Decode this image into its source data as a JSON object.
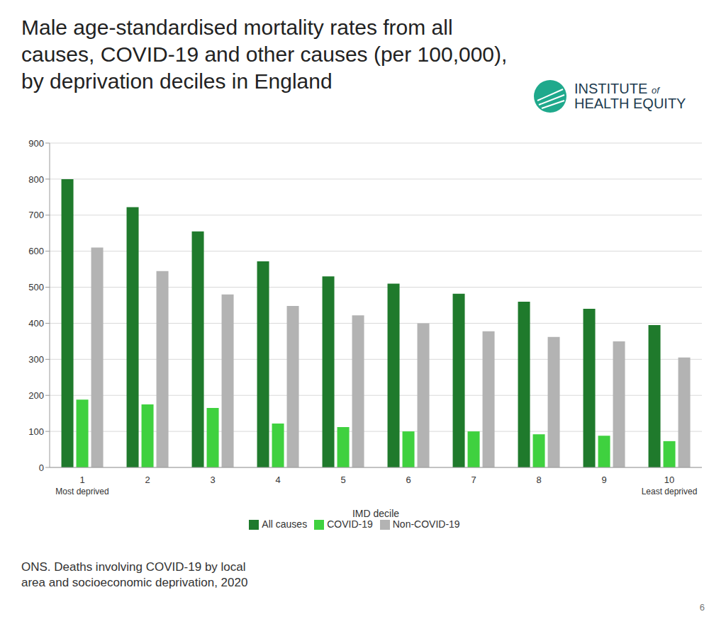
{
  "chart_data": {
    "type": "bar",
    "title": "Male age-standardised mortality rates from all causes, COVID-19 and other causes (per 100,000), by deprivation deciles in England",
    "logo": [
      "INSTITUTE",
      "of",
      "HEALTH EQUITY"
    ],
    "x_label": "IMD decile",
    "categories": [
      "1",
      "2",
      "3",
      "4",
      "5",
      "6",
      "7",
      "8",
      "9",
      "10"
    ],
    "x_sublabels": [
      "Most deprived",
      null,
      null,
      null,
      null,
      null,
      null,
      null,
      null,
      "Least deprived"
    ],
    "series": [
      {
        "name": "All causes",
        "color": "#1f7a2c",
        "values": [
          800,
          722,
          655,
          572,
          530,
          510,
          482,
          460,
          440,
          395
        ]
      },
      {
        "name": "COVID-19",
        "color": "#3fd13f",
        "values": [
          188,
          175,
          165,
          122,
          112,
          100,
          100,
          92,
          88,
          73
        ]
      },
      {
        "name": "Non-COVID-19",
        "color": "#b3b3b3",
        "values": [
          610,
          545,
          480,
          448,
          422,
          400,
          378,
          362,
          350,
          305
        ]
      }
    ],
    "ylim": [
      0,
      900
    ],
    "yticks": [
      0,
      100,
      200,
      300,
      400,
      500,
      600,
      700,
      800,
      900
    ],
    "grid": true,
    "legend": "bottom",
    "source": "ONS. Deaths involving COVID-19 by local area and socioeconomic deprivation, 2020",
    "page_number": "6"
  }
}
